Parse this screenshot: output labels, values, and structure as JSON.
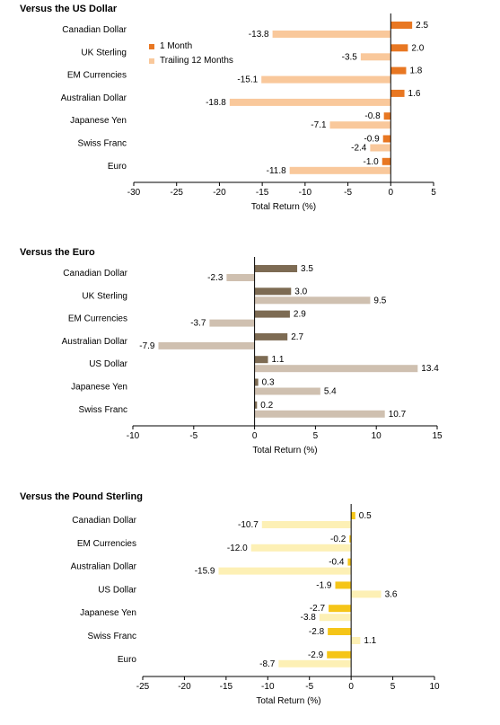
{
  "chart_data": [
    {
      "type": "bar",
      "orientation": "horizontal",
      "title": "Versus the US Dollar",
      "xlabel": "Total Return (%)",
      "xlim": [
        -30,
        5
      ],
      "xticks": [
        -30,
        -25,
        -20,
        -15,
        -10,
        -5,
        0,
        5
      ],
      "categories": [
        "Canadian Dollar",
        "UK Sterling",
        "EM Currencies",
        "Australian Dollar",
        "Japanese Yen",
        "Swiss Franc",
        "Euro"
      ],
      "series": [
        {
          "name": "1 Month",
          "color": "#e87722",
          "values": [
            2.5,
            2.0,
            1.8,
            1.6,
            -0.8,
            -0.9,
            -1.0
          ]
        },
        {
          "name": "Trailing 12 Months",
          "color": "#f9c89b",
          "values": [
            -13.8,
            -3.5,
            -15.1,
            -18.8,
            -7.1,
            -2.4,
            -11.8
          ]
        }
      ],
      "legend_position": "upper-middle"
    },
    {
      "type": "bar",
      "orientation": "horizontal",
      "title": "Versus the Euro",
      "xlabel": "Total Return (%)",
      "xlim": [
        -10,
        15
      ],
      "xticks": [
        -10,
        -5,
        0,
        5,
        10,
        15
      ],
      "categories": [
        "Canadian Dollar",
        "UK Sterling",
        "EM Currencies",
        "Australian Dollar",
        "US Dollar",
        "Japanese Yen",
        "Swiss Franc"
      ],
      "series": [
        {
          "color": "#7d6b53",
          "values": [
            3.5,
            3.0,
            2.9,
            2.7,
            1.1,
            0.3,
            0.2
          ]
        },
        {
          "color": "#cfc0b0",
          "values": [
            -2.3,
            9.5,
            -3.7,
            -7.9,
            13.4,
            5.4,
            10.7
          ]
        }
      ]
    },
    {
      "type": "bar",
      "orientation": "horizontal",
      "title": "Versus the Pound Sterling",
      "xlabel": "Total Return (%)",
      "xlim": [
        -25,
        10
      ],
      "xticks": [
        -25,
        -20,
        -15,
        -10,
        -5,
        0,
        5,
        10
      ],
      "categories": [
        "Canadian Dollar",
        "EM Currencies",
        "Australian Dollar",
        "US Dollar",
        "Japanese Yen",
        "Swiss Franc",
        "Euro"
      ],
      "series": [
        {
          "color": "#f5c518",
          "values": [
            0.5,
            -0.2,
            -0.4,
            -1.9,
            -2.7,
            -2.8,
            -2.9
          ]
        },
        {
          "color": "#fdf0b5",
          "values": [
            -10.7,
            -12.0,
            -15.9,
            3.6,
            -3.8,
            1.1,
            -8.7
          ]
        }
      ]
    }
  ]
}
